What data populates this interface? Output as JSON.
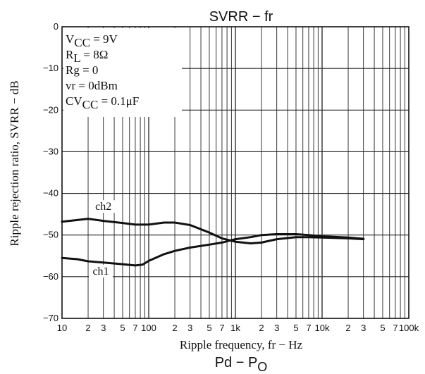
{
  "chart_data": {
    "type": "line",
    "title": "SVRR − fr",
    "xlabel": "Ripple frequency, fr − Hz",
    "ylabel": "Ripple rejection ratio, SVRR − dB",
    "xscale": "log",
    "xlim": [
      10,
      100000
    ],
    "ylim": [
      -70,
      0
    ],
    "grid": true,
    "x_tick_labels": [
      {
        "value": 10,
        "label": "10"
      },
      {
        "value": 20,
        "label": "2"
      },
      {
        "value": 30,
        "label": "3"
      },
      {
        "value": 50,
        "label": "5"
      },
      {
        "value": 70,
        "label": "7"
      },
      {
        "value": 100,
        "label": "100"
      },
      {
        "value": 200,
        "label": "2"
      },
      {
        "value": 300,
        "label": "3"
      },
      {
        "value": 500,
        "label": "5"
      },
      {
        "value": 700,
        "label": "7"
      },
      {
        "value": 1000,
        "label": "1k"
      },
      {
        "value": 2000,
        "label": "2"
      },
      {
        "value": 3000,
        "label": "3"
      },
      {
        "value": 5000,
        "label": "5"
      },
      {
        "value": 7000,
        "label": "7"
      },
      {
        "value": 10000,
        "label": "10k"
      },
      {
        "value": 20000,
        "label": "2"
      },
      {
        "value": 30000,
        "label": "3"
      },
      {
        "value": 50000,
        "label": "5"
      },
      {
        "value": 70000,
        "label": "7"
      },
      {
        "value": 100000,
        "label": "100k"
      }
    ],
    "y_tick_labels": [
      {
        "value": 0,
        "label": "0"
      },
      {
        "value": -10,
        "label": "−10"
      },
      {
        "value": -20,
        "label": "−20"
      },
      {
        "value": -30,
        "label": "−30"
      },
      {
        "value": -40,
        "label": "−40"
      },
      {
        "value": -50,
        "label": "−50"
      },
      {
        "value": -60,
        "label": "−60"
      },
      {
        "value": -70,
        "label": "−70"
      }
    ],
    "conditions": [
      {
        "main": "V",
        "sub": "CC",
        "rest": " = 9V"
      },
      {
        "main": "R",
        "sub": "L",
        "rest": " = 8Ω"
      },
      {
        "main": "Rg = 0",
        "sub": "",
        "rest": ""
      },
      {
        "main": "vr = 0dBm",
        "sub": "",
        "rest": ""
      },
      {
        "main": "CV",
        "sub": "CC",
        "rest": " = 0.1μF"
      }
    ],
    "series": [
      {
        "name": "ch2",
        "label_at": {
          "x": 30,
          "y": -44
        },
        "x": [
          10,
          15,
          20,
          30,
          50,
          70,
          100,
          150,
          200,
          300,
          500,
          700,
          1000,
          1500,
          2000,
          3000,
          5000,
          7000,
          10000,
          20000,
          30000
        ],
        "y": [
          -46.8,
          -46.4,
          -46.1,
          -46.6,
          -47.1,
          -47.5,
          -47.5,
          -47.0,
          -47.0,
          -47.6,
          -49.4,
          -50.8,
          -51.6,
          -52.0,
          -51.8,
          -51.0,
          -50.5,
          -50.5,
          -50.6,
          -50.8,
          -51.0
        ]
      },
      {
        "name": "ch1",
        "label_at": {
          "x": 28,
          "y": -59.5
        },
        "x": [
          10,
          15,
          20,
          30,
          50,
          70,
          85,
          100,
          150,
          200,
          300,
          500,
          700,
          1000,
          1500,
          2000,
          3000,
          5000,
          7000,
          10000,
          20000,
          30000
        ],
        "y": [
          -55.5,
          -55.8,
          -56.3,
          -56.6,
          -57.0,
          -57.3,
          -57.1,
          -56.2,
          -54.6,
          -53.8,
          -53.0,
          -52.3,
          -51.8,
          -51.0,
          -50.5,
          -50.0,
          -49.8,
          -49.8,
          -50.0,
          -50.3,
          -50.6,
          -50.9
        ]
      }
    ]
  },
  "footer": {
    "partial_title_main": "Pd − P",
    "partial_title_sub": "O"
  }
}
